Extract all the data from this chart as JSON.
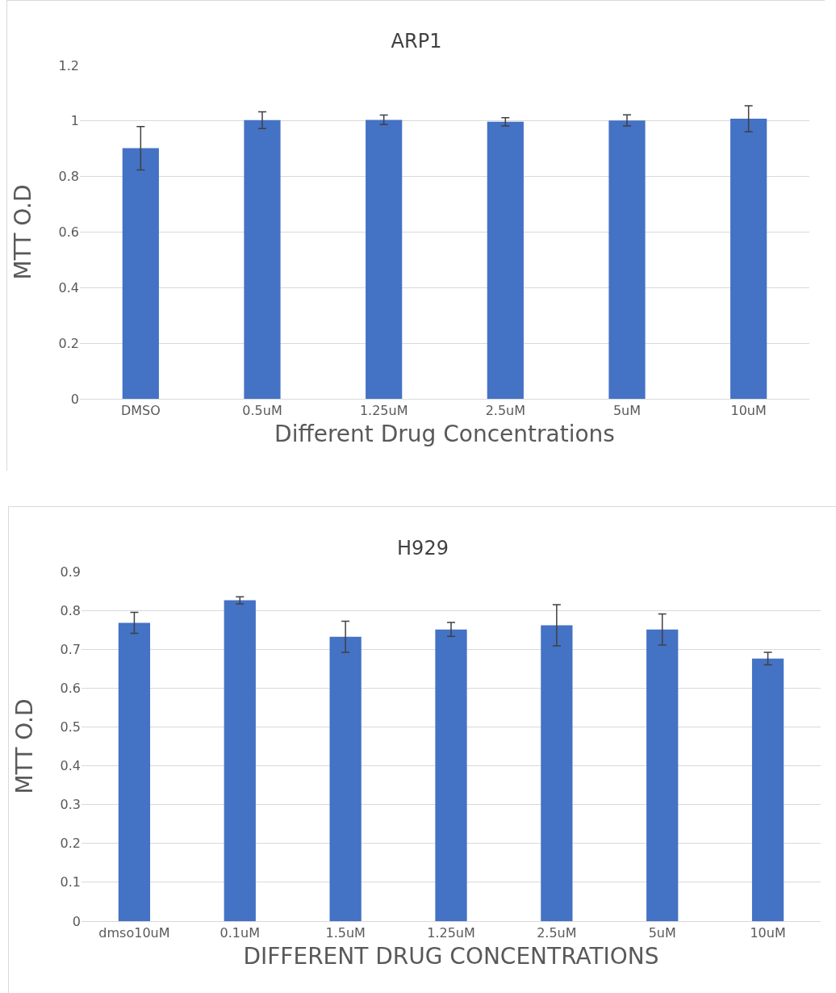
{
  "chart_data": [
    {
      "type": "bar",
      "title": "ARP1",
      "xlabel": "Different Drug Concentrations",
      "ylabel": "MTT O.D",
      "categories": [
        "DMSO",
        "0.5uM",
        "1.25uM",
        "2.5uM",
        "5uM",
        "10uM"
      ],
      "values": [
        0.902,
        1.003,
        1.004,
        0.997,
        1.002,
        1.008
      ],
      "errors": [
        0.078,
        0.03,
        0.017,
        0.015,
        0.02,
        0.047
      ],
      "color": "#4472c4",
      "ylim": [
        0,
        1.2
      ],
      "yticks": [
        0,
        0.2,
        0.4,
        0.6,
        0.8,
        1,
        1.2
      ],
      "grid": "y"
    },
    {
      "type": "bar",
      "title": "H929",
      "xlabel": "DIFFERENT DRUG CONCENTRATIONS",
      "ylabel": "MTT O.D",
      "categories": [
        "dmso10uM",
        "0.1uM",
        "1.5uM",
        "1.25uM",
        "2.5uM",
        "5uM",
        "10uM"
      ],
      "values": [
        0.768,
        0.826,
        0.732,
        0.751,
        0.762,
        0.751,
        0.676
      ],
      "errors": [
        0.027,
        0.009,
        0.04,
        0.018,
        0.053,
        0.04,
        0.016
      ],
      "color": "#4472c4",
      "ylim": [
        0,
        0.9
      ],
      "yticks": [
        0,
        0.1,
        0.2,
        0.3,
        0.4,
        0.5,
        0.6,
        0.7,
        0.8,
        0.9
      ],
      "grid": "y"
    }
  ]
}
